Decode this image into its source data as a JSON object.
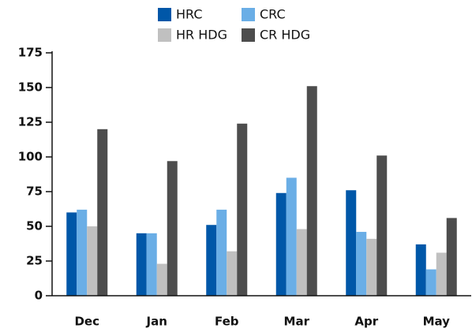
{
  "chart_data": {
    "type": "bar",
    "categories": [
      "Dec",
      "Jan",
      "Feb",
      "Mar",
      "Apr",
      "May"
    ],
    "series": [
      {
        "name": "HRC",
        "color": "#0057a8",
        "values": [
          60,
          45,
          51,
          74,
          76,
          37
        ]
      },
      {
        "name": "CRC",
        "color": "#6aaee6",
        "values": [
          62,
          45,
          62,
          85,
          46,
          19
        ]
      },
      {
        "name": "HR HDG",
        "color": "#c0c0c0",
        "values": [
          50,
          23,
          32,
          48,
          41,
          31
        ]
      },
      {
        "name": "CR HDG",
        "color": "#4d4d4d",
        "values": [
          120,
          97,
          124,
          151,
          101,
          56
        ]
      }
    ],
    "ylim": [
      0,
      175
    ],
    "yticks": [
      0,
      25,
      50,
      75,
      100,
      125,
      150,
      175
    ],
    "grid": false,
    "legend": "top"
  }
}
